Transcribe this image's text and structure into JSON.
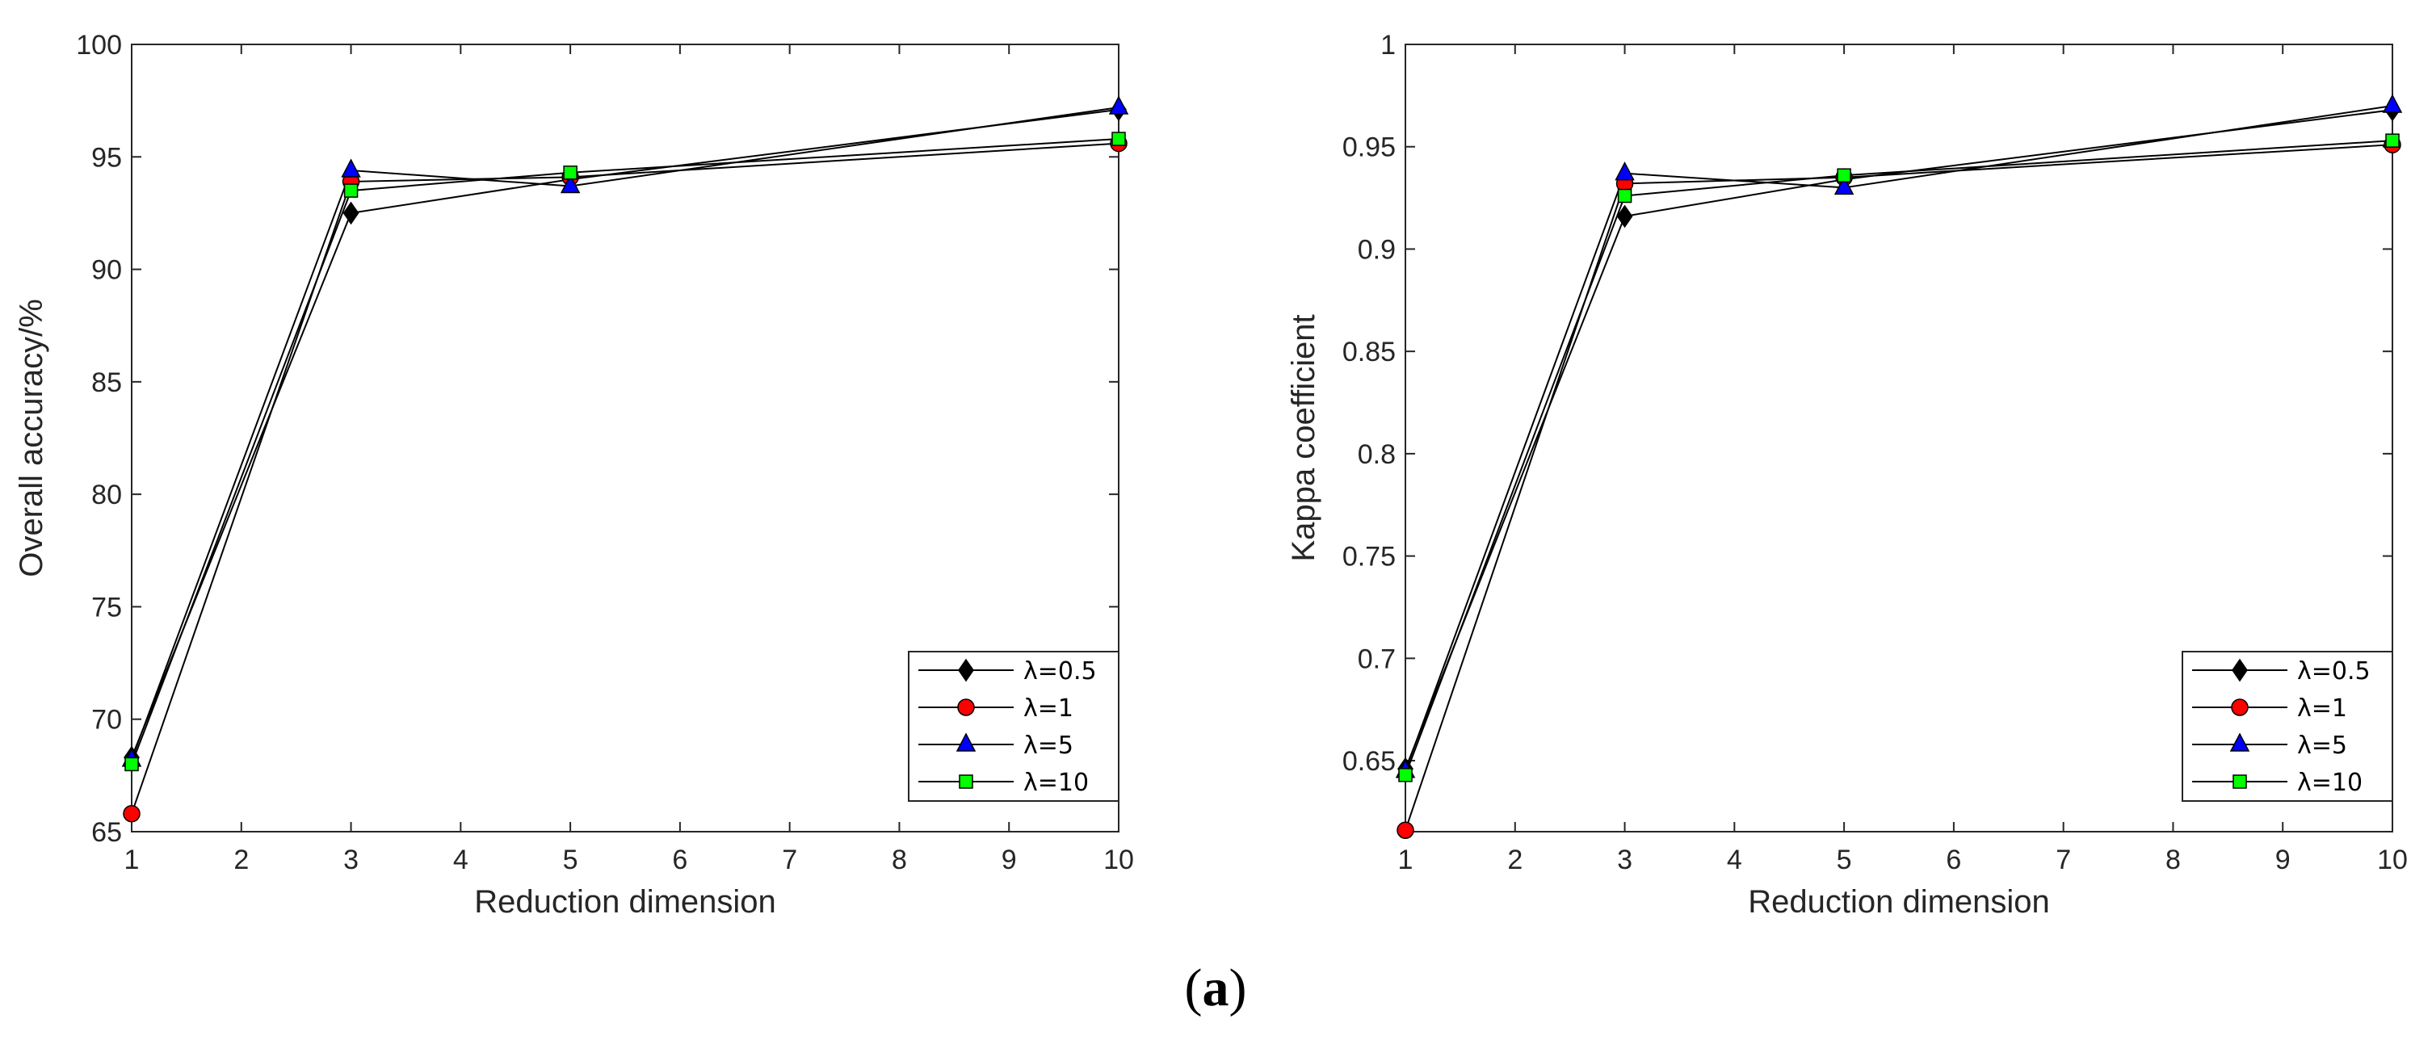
{
  "caption": {
    "open": "(",
    "letter": "a",
    "close": ")"
  },
  "colors": {
    "line": "#000000",
    "axis": "#262626",
    "lambda_0_5": "#000000",
    "lambda_1": "#ff0000",
    "lambda_5": "#0000ff",
    "lambda_10": "#00ff00"
  },
  "chart_data": [
    {
      "type": "line",
      "title": "",
      "xlabel": "Reduction dimension",
      "ylabel": "Overall accuracy/%",
      "x": [
        1,
        3,
        5,
        10
      ],
      "xlim": [
        1,
        10
      ],
      "ylim": [
        65,
        100
      ],
      "xticks": [
        "1",
        "2",
        "3",
        "4",
        "5",
        "6",
        "7",
        "8",
        "9",
        "10"
      ],
      "yticks": [
        "65",
        "70",
        "75",
        "80",
        "85",
        "90",
        "95",
        "100"
      ],
      "grid": false,
      "legend_position": "bottom-right",
      "series": [
        {
          "name": "λ=0.5",
          "marker": "diamond",
          "color": "#000000",
          "values": [
            68.3,
            92.5,
            94.0,
            97.1
          ]
        },
        {
          "name": "λ=1",
          "marker": "circle",
          "color": "#ff0000",
          "values": [
            65.8,
            93.9,
            94.1,
            95.6
          ]
        },
        {
          "name": "λ=5",
          "marker": "triangle",
          "color": "#0000ff",
          "values": [
            68.2,
            94.4,
            93.7,
            97.2
          ]
        },
        {
          "name": "λ=10",
          "marker": "square",
          "color": "#00ff00",
          "values": [
            68.0,
            93.5,
            94.3,
            95.8
          ]
        }
      ]
    },
    {
      "type": "line",
      "title": "",
      "xlabel": "Reduction dimension",
      "ylabel": "Kappa coefficient",
      "x": [
        1,
        3,
        5,
        10
      ],
      "xlim": [
        1,
        10
      ],
      "ylim": [
        0.6153,
        1.0
      ],
      "xticks": [
        "1",
        "2",
        "3",
        "4",
        "5",
        "6",
        "7",
        "8",
        "9",
        "10"
      ],
      "yticks": [
        "0.65",
        "0.7",
        "0.75",
        "0.8",
        "0.85",
        "0.9",
        "0.95",
        "1"
      ],
      "grid": false,
      "legend_position": "bottom-right",
      "series": [
        {
          "name": "λ=0.5",
          "marker": "diamond",
          "color": "#000000",
          "values": [
            0.646,
            0.916,
            0.934,
            0.968
          ]
        },
        {
          "name": "λ=1",
          "marker": "circle",
          "color": "#ff0000",
          "values": [
            0.616,
            0.932,
            0.935,
            0.951
          ]
        },
        {
          "name": "λ=5",
          "marker": "triangle",
          "color": "#0000ff",
          "values": [
            0.645,
            0.937,
            0.93,
            0.97
          ]
        },
        {
          "name": "λ=10",
          "marker": "square",
          "color": "#00ff00",
          "values": [
            0.643,
            0.926,
            0.936,
            0.953
          ]
        }
      ]
    }
  ]
}
